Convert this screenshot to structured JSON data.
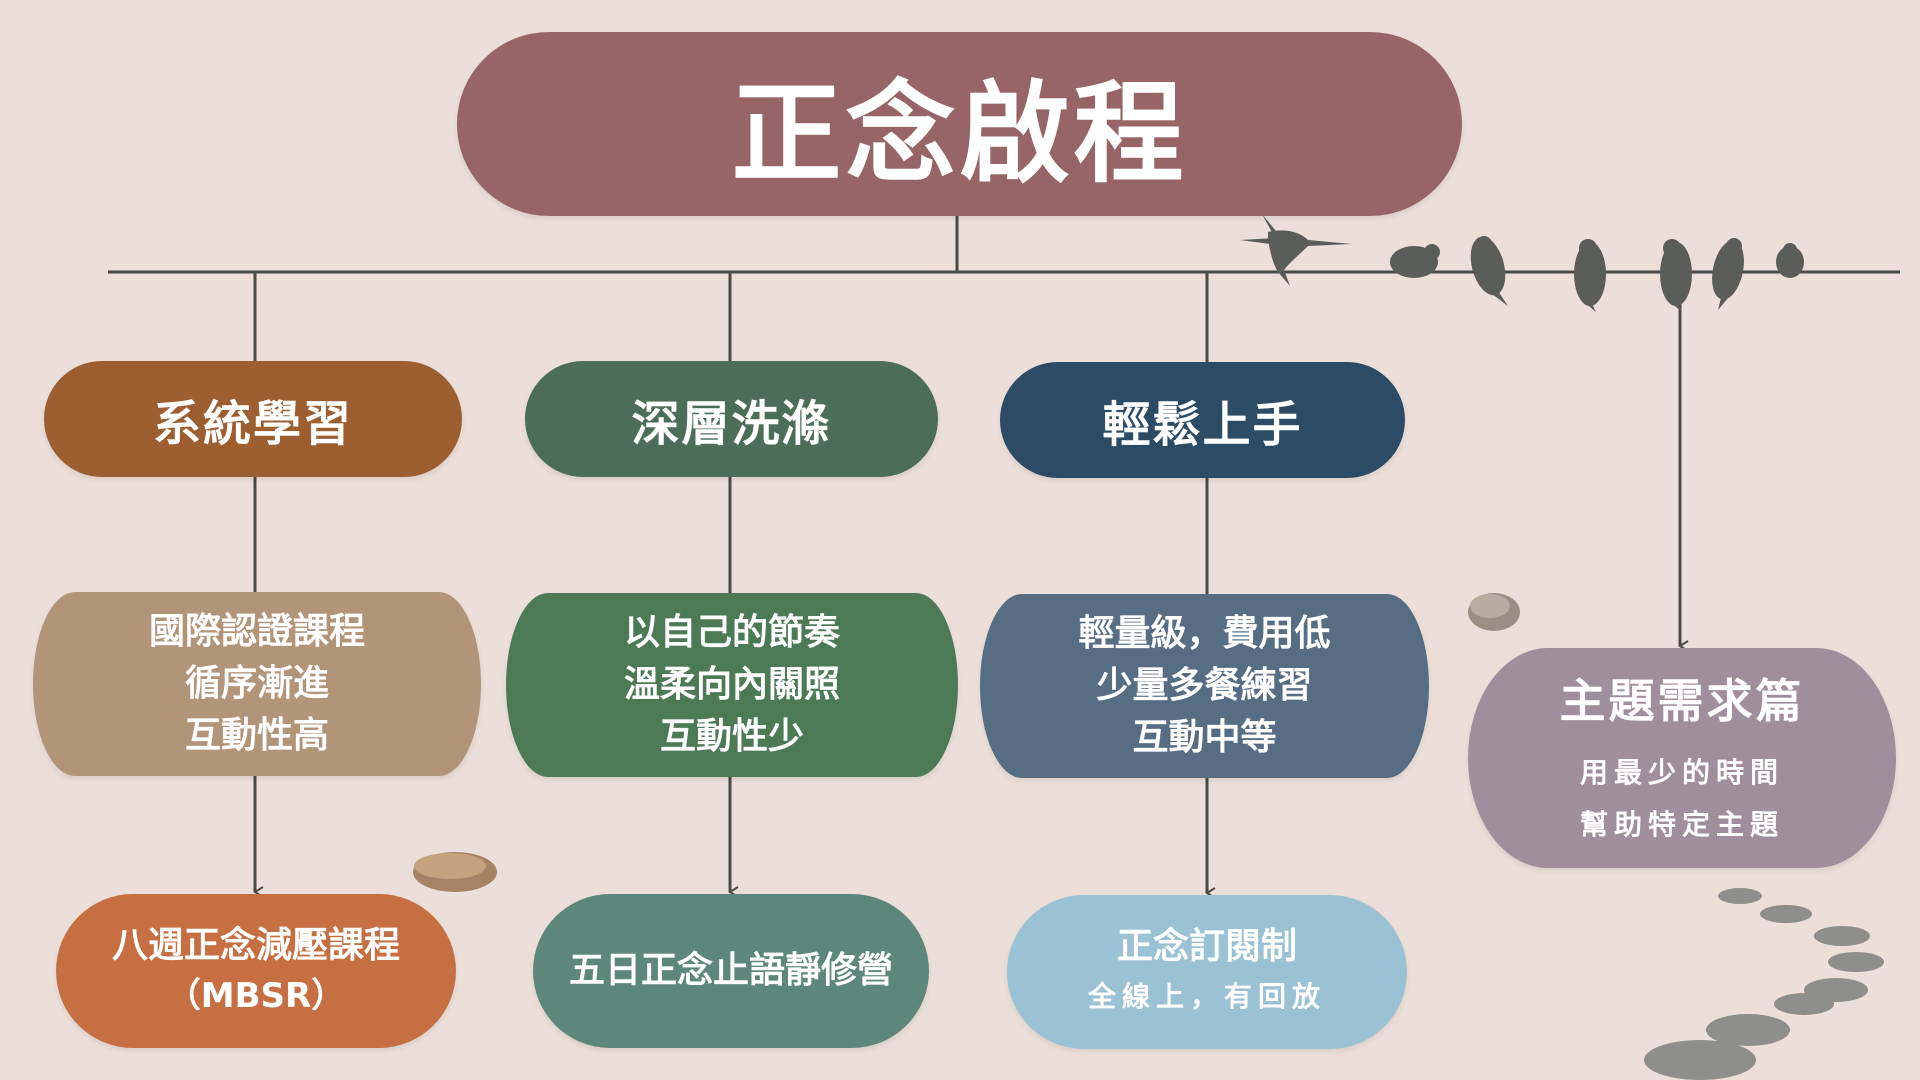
{
  "title": "正念啟程",
  "categories": [
    {
      "label": "系統學習"
    },
    {
      "label": "深層洗滌"
    },
    {
      "label": "輕鬆上手"
    }
  ],
  "descriptions": [
    {
      "lines": [
        "國際認證課程",
        "循序漸進",
        "互動性高"
      ]
    },
    {
      "lines": [
        "以自己的節奏",
        "溫柔向內關照",
        "互動性少"
      ]
    },
    {
      "lines": [
        "輕量級，費用低",
        "少量多餐練習",
        "互動中等"
      ]
    }
  ],
  "programs": [
    {
      "lines": [
        "八週正念減壓課程",
        "（MBSR）"
      ]
    },
    {
      "lines": [
        "五日正念止語靜修營"
      ]
    },
    {
      "lines": [
        "正念訂閱制",
        "全線上，有回放"
      ]
    }
  ],
  "theme": {
    "title": "主題需求篇",
    "lines": [
      "用最少的時間",
      "幫助特定主題"
    ]
  },
  "colors": {
    "background": "#ecdfd9",
    "title": "#976566",
    "connector": "#4a4a48",
    "birds": "#5a5d5a"
  },
  "icons": [
    "hummingbird-icon",
    "bird-icon",
    "stone-icon"
  ]
}
